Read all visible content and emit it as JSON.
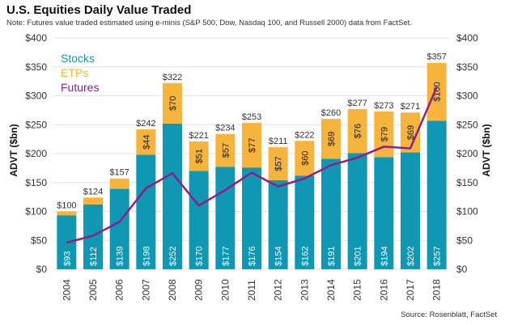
{
  "chart_data": {
    "type": "bar",
    "title": "U.S. Equities Daily Value Traded",
    "subtitle": "Note: Futures value traded estimated using e-minis (S&P 500, Dow, Nasdaq 100, and Russell 2000) data from FactSet.",
    "source": "Source: Rosenblatt, FactSet",
    "ylabel_left": "ADVT ($bn)",
    "ylabel_right": "ADVT ($bn)",
    "ylim": [
      0,
      400
    ],
    "yticks": [
      "$0",
      "$50",
      "$100",
      "$150",
      "$200",
      "$250",
      "$300",
      "$350",
      "$400"
    ],
    "categories": [
      "2004",
      "2005",
      "2006",
      "2007",
      "2008",
      "2009",
      "2010",
      "2011",
      "2012",
      "2013",
      "2014",
      "2015",
      "2016",
      "2017",
      "2018"
    ],
    "stacked": true,
    "legend_position": "top-left",
    "series": [
      {
        "name": "Stocks",
        "kind": "bar",
        "color": "#0f97b4",
        "values": [
          93,
          112,
          139,
          198,
          252,
          170,
          177,
          176,
          154,
          162,
          191,
          201,
          194,
          202,
          257
        ],
        "labels": [
          "$93",
          "$112",
          "$139",
          "$198",
          "$252",
          "$170",
          "$177",
          "$176",
          "$154",
          "$162",
          "$191",
          "$201",
          "$194",
          "$202",
          "$257"
        ]
      },
      {
        "name": "ETPs",
        "kind": "bar",
        "color": "#f6b43c",
        "values": [
          7,
          12,
          18,
          44,
          70,
          51,
          57,
          77,
          57,
          60,
          69,
          76,
          79,
          69,
          100
        ],
        "labels": [
          "",
          "",
          "",
          "$44",
          "$70",
          "$51",
          "$57",
          "$77",
          "$57",
          "$60",
          "$69",
          "$76",
          "$79",
          "$69",
          "$100"
        ]
      },
      {
        "name": "Futures",
        "kind": "line",
        "color": "#8e1f86",
        "values": [
          46,
          58,
          82,
          140,
          166,
          110,
          137,
          167,
          143,
          157,
          180,
          193,
          212,
          209,
          315
        ]
      }
    ],
    "totals": [
      "$100",
      "$124",
      "$157",
      "$242",
      "$322",
      "$221",
      "$234",
      "$253",
      "$211",
      "$222",
      "$260",
      "$277",
      "$273",
      "$271",
      "$357"
    ],
    "total_values": [
      100,
      124,
      157,
      242,
      322,
      221,
      234,
      253,
      211,
      222,
      260,
      277,
      273,
      271,
      357
    ]
  }
}
